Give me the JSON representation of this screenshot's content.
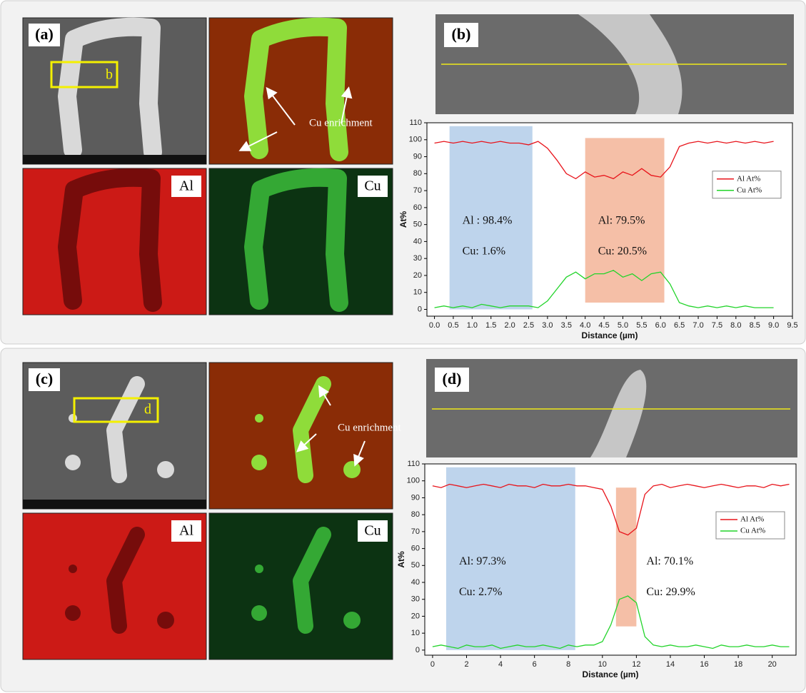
{
  "panels": [
    {
      "label": "(a)",
      "box_label": "b",
      "maps": [
        "Al",
        "Cu"
      ],
      "annotation": "Cu enrichment"
    },
    {
      "label": "(c)",
      "box_label": "d",
      "maps": [
        "Al",
        "Cu"
      ],
      "annotation": "Cu enrichment"
    }
  ],
  "chart_data": [
    {
      "type": "line",
      "panel_label": "(b)",
      "xlabel": "Distance (µm)",
      "ylabel": "At%",
      "x": [
        0,
        0.25,
        0.5,
        0.75,
        1,
        1.25,
        1.5,
        1.75,
        2,
        2.25,
        2.5,
        2.75,
        3,
        3.25,
        3.5,
        3.75,
        4,
        4.25,
        4.5,
        4.75,
        5,
        5.25,
        5.5,
        5.75,
        6,
        6.25,
        6.5,
        6.75,
        7,
        7.25,
        7.5,
        7.75,
        8,
        8.25,
        8.5,
        8.75,
        9
      ],
      "series": [
        {
          "name": "Al At%",
          "color": "#e8131a",
          "values": [
            98,
            99,
            98,
            99,
            98,
            99,
            98,
            99,
            98,
            98,
            97,
            99,
            95,
            88,
            80,
            77,
            81,
            78,
            79,
            77,
            81,
            79,
            83,
            79,
            78,
            84,
            96,
            98,
            99,
            98,
            99,
            98,
            99,
            98,
            99,
            98,
            99
          ]
        },
        {
          "name": "Cu At%",
          "color": "#22d42a",
          "values": [
            1,
            2,
            1,
            2,
            1,
            3,
            2,
            1,
            2,
            2,
            2,
            1,
            5,
            12,
            19,
            22,
            18,
            21,
            21,
            23,
            19,
            21,
            17,
            21,
            22,
            15,
            4,
            2,
            1,
            2,
            1,
            2,
            1,
            2,
            1,
            1,
            1
          ]
        }
      ],
      "xlim": [
        -0.2,
        9.5
      ],
      "ylim": [
        -4,
        110
      ],
      "xticks": [
        {
          "value": 0,
          "label": "0.0"
        },
        0.5,
        {
          "value": 1,
          "label": "1.0"
        },
        1.5,
        {
          "value": 2,
          "label": "2.0"
        },
        2.5,
        {
          "value": 3,
          "label": "3.0"
        },
        3.5,
        {
          "value": 4,
          "label": "4.0"
        },
        4.5,
        {
          "value": 5,
          "label": "5.0"
        },
        5.5,
        {
          "value": 6,
          "label": "6.0"
        },
        6.5,
        {
          "value": 7,
          "label": "7.0"
        },
        7.5,
        {
          "value": 8,
          "label": "8.0"
        },
        8.5,
        {
          "value": 9,
          "label": "9.0"
        },
        9.5
      ],
      "yticks": [
        0,
        10,
        20,
        30,
        40,
        50,
        60,
        70,
        80,
        90,
        100,
        110
      ],
      "legend": "right",
      "bands": [
        {
          "x": [
            0.4,
            2.6
          ],
          "y": [
            0,
            108
          ],
          "color": "#a8c6e6",
          "labels": [
            "Al : 98.4%",
            "Cu: 1.6%"
          ]
        },
        {
          "x": [
            4.0,
            6.1
          ],
          "y": [
            4,
            101
          ],
          "color": "#f2a98a",
          "labels": [
            "Al:  79.5%",
            "Cu: 20.5%"
          ]
        }
      ]
    },
    {
      "type": "line",
      "panel_label": "(d)",
      "xlabel": "Distance (µm)",
      "ylabel": "At%",
      "x": [
        0,
        0.5,
        1,
        1.5,
        2,
        2.5,
        3,
        3.5,
        4,
        4.5,
        5,
        5.5,
        6,
        6.5,
        7,
        7.5,
        8,
        8.5,
        9,
        9.5,
        10,
        10.5,
        11,
        11.5,
        12,
        12.5,
        13,
        13.5,
        14,
        14.5,
        15,
        15.5,
        16,
        16.5,
        17,
        17.5,
        18,
        18.5,
        19,
        19.5,
        20,
        20.5,
        21
      ],
      "series": [
        {
          "name": "Al At%",
          "color": "#e8131a",
          "values": [
            97,
            96,
            98,
            97,
            96,
            97,
            98,
            97,
            96,
            98,
            97,
            97,
            96,
            98,
            97,
            97,
            98,
            97,
            97,
            96,
            95,
            85,
            70,
            68,
            72,
            92,
            97,
            98,
            96,
            97,
            98,
            97,
            96,
            97,
            98,
            97,
            96,
            97,
            97,
            96,
            98,
            97,
            98
          ]
        },
        {
          "name": "Cu At%",
          "color": "#22d42a",
          "values": [
            2,
            3,
            2,
            1,
            3,
            2,
            2,
            3,
            1,
            2,
            3,
            2,
            2,
            3,
            2,
            1,
            3,
            2,
            3,
            3,
            5,
            15,
            30,
            32,
            28,
            8,
            3,
            2,
            3,
            2,
            2,
            3,
            2,
            1,
            3,
            2,
            2,
            3,
            2,
            2,
            3,
            2,
            2
          ]
        }
      ],
      "xlim": [
        -0.46,
        21.4
      ],
      "ylim": [
        -3,
        110
      ],
      "xticks": [
        0,
        2,
        4,
        6,
        8,
        10,
        12,
        14,
        16,
        18,
        20
      ],
      "yticks": [
        0,
        10,
        20,
        30,
        40,
        50,
        60,
        70,
        80,
        90,
        100,
        110
      ],
      "legend": "right",
      "bands": [
        {
          "x": [
            0.8,
            8.4
          ],
          "y": [
            0,
            108
          ],
          "color": "#a8c6e6",
          "labels": [
            "Al:  97.3%",
            "Cu: 2.7%"
          ]
        },
        {
          "x": [
            10.8,
            12.0
          ],
          "y": [
            14,
            96
          ],
          "color": "#f2a98a",
          "labels": [
            "Al:  70.1%",
            "Cu: 29.9%"
          ]
        }
      ]
    }
  ]
}
